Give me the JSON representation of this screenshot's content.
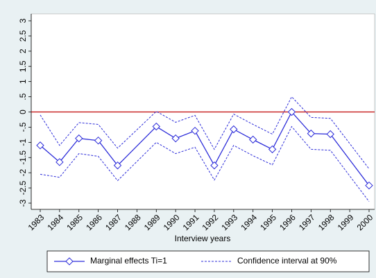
{
  "chart_data": {
    "type": "line",
    "x_label": "Interview years",
    "x": [
      1983,
      1984,
      1985,
      1986,
      1987,
      1989,
      1990,
      1991,
      1992,
      1993,
      1994,
      1995,
      1996,
      1997,
      1998,
      2000
    ],
    "series": [
      {
        "name": "Marginal effects Ti=1",
        "color": "#2b2bd9",
        "style": "solid",
        "marker": "diamond",
        "values": [
          -1.1,
          -1.65,
          -0.87,
          -0.94,
          -1.76,
          -0.48,
          -0.87,
          -0.62,
          -1.76,
          -0.57,
          -0.91,
          -1.23,
          0,
          -0.71,
          -0.73,
          -2.42
        ]
      },
      {
        "name": "Confidence interval at 90%",
        "color": "#2b2bd9",
        "style": "dashed",
        "values": [
          -0.1,
          -1.1,
          -0.35,
          -0.41,
          -1.19,
          0.02,
          -0.34,
          -0.11,
          -1.23,
          -0.07,
          -0.41,
          -0.73,
          0.5,
          -0.18,
          -0.21,
          -1.87
        ]
      },
      {
        "color": "#2b2bd9",
        "style": "dashed",
        "values": [
          -2.05,
          -2.15,
          -1.37,
          -1.46,
          -2.26,
          -1.0,
          -1.37,
          -1.16,
          -2.24,
          -1.1,
          -1.44,
          -1.74,
          -0.48,
          -1.23,
          -1.26,
          -2.95
        ]
      }
    ],
    "xlim": [
      1983,
      2000
    ],
    "xticks": [
      1983,
      1984,
      1985,
      1986,
      1987,
      1988,
      1989,
      1990,
      1991,
      1992,
      1993,
      1994,
      1995,
      1996,
      1997,
      1998,
      1999,
      2000
    ],
    "ylim": [
      -3,
      3
    ],
    "yticks": [
      3,
      {
        "value": 2.5,
        "label": "2.5"
      },
      2,
      {
        "value": 1.5,
        "label": "1.5"
      },
      1,
      {
        "value": 0.5,
        "label": ".5"
      },
      0,
      {
        "value": -0.5,
        "label": "-.5"
      },
      -1,
      {
        "value": -1.5,
        "label": "-1.5"
      },
      -2,
      {
        "value": -2.5,
        "label": "-2.5"
      },
      -3
    ],
    "reference_line": {
      "value": 0,
      "color": "#c00000"
    }
  }
}
